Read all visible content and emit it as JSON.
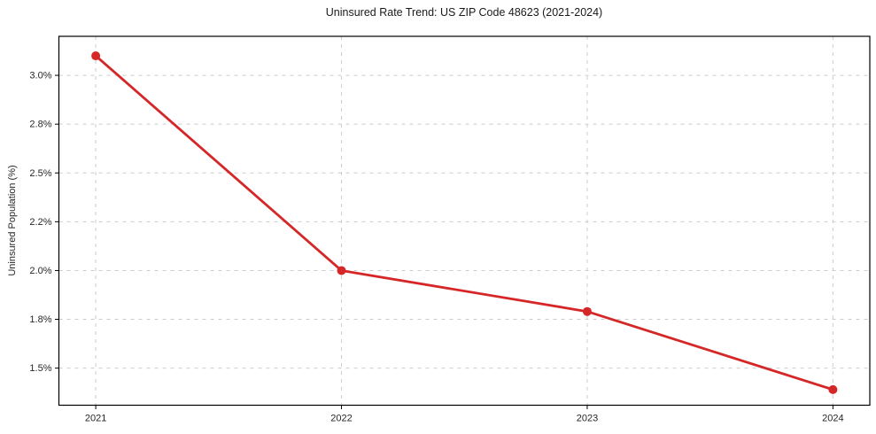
{
  "chart_data": {
    "type": "line",
    "title": "Uninsured Rate Trend: US ZIP Code 48623 (2021-2024)",
    "xlabel": "",
    "ylabel": "Uninsured Population (%)",
    "categories": [
      "2021",
      "2022",
      "2023",
      "2024"
    ],
    "series": [
      {
        "name": "Uninsured rate",
        "values": [
          3.1,
          2.0,
          1.79,
          1.39
        ]
      }
    ],
    "unit": "%",
    "ylim": [
      1.31,
      3.2
    ],
    "yticks": [
      {
        "value": 1.5,
        "label": "1.5%"
      },
      {
        "value": 1.75,
        "label": "1.8%"
      },
      {
        "value": 2.0,
        "label": "2.0%"
      },
      {
        "value": 2.25,
        "label": "2.2%"
      },
      {
        "value": 2.5,
        "label": "2.5%"
      },
      {
        "value": 2.75,
        "label": "2.8%"
      },
      {
        "value": 3.0,
        "label": "3.0%"
      }
    ],
    "grid": "on",
    "grid_style": "dashed",
    "legend": "none",
    "marker": "circle",
    "colors": {
      "line": "#d62728",
      "marker": "#d62728",
      "grid": "#cccccc",
      "spine": "#000000",
      "tick_text": "#262626",
      "title_text": "#1a1a1a",
      "background": "#ffffff"
    }
  }
}
